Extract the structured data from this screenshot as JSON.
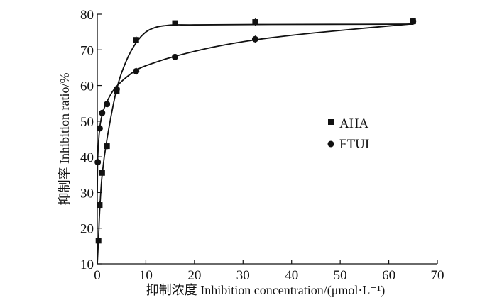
{
  "chart_data": {
    "type": "scatter",
    "title": "",
    "xlabel": "抑制浓度 Inhibition concentration/(μmol·L⁻¹)",
    "ylabel": "抑制率 Inhibition ratio/%",
    "xlim": [
      0,
      70
    ],
    "ylim": [
      10,
      80
    ],
    "xticks": [
      0,
      10,
      20,
      30,
      40,
      50,
      60,
      70
    ],
    "yticks": [
      10,
      20,
      30,
      40,
      50,
      60,
      70,
      80
    ],
    "grid": false,
    "legend_position": "center-right",
    "series": [
      {
        "name": "AHA",
        "marker": "square",
        "x": [
          0.25,
          0.5,
          1,
          2,
          4,
          8,
          16,
          32.5,
          65
        ],
        "y": [
          16.5,
          26.5,
          35.5,
          43,
          58.5,
          72.8,
          77.5,
          77.8,
          78
        ],
        "fit_x": [
          0,
          0.25,
          0.5,
          1,
          2,
          4,
          6,
          8,
          10,
          12,
          14,
          16,
          20,
          32.5,
          65
        ],
        "fit_y": [
          10,
          17,
          25,
          35,
          45,
          59,
          67,
          72,
          75,
          76.3,
          76.8,
          77,
          77,
          77.1,
          77.2
        ]
      },
      {
        "name": "FTUI",
        "marker": "circle",
        "x": [
          0.1,
          0.5,
          1,
          2,
          4,
          8,
          16,
          32.5,
          65
        ],
        "y": [
          38.5,
          48,
          52.3,
          54.8,
          59,
          64,
          68,
          73,
          78
        ],
        "fit_x": [
          0,
          0.1,
          0.5,
          1,
          2,
          4,
          8,
          12,
          16,
          24,
          32.5,
          45,
          65
        ],
        "fit_y": [
          30,
          40,
          48,
          51.8,
          55.5,
          59.8,
          64.3,
          66.5,
          68.2,
          70.8,
          72.8,
          74.8,
          77.3
        ]
      }
    ]
  }
}
